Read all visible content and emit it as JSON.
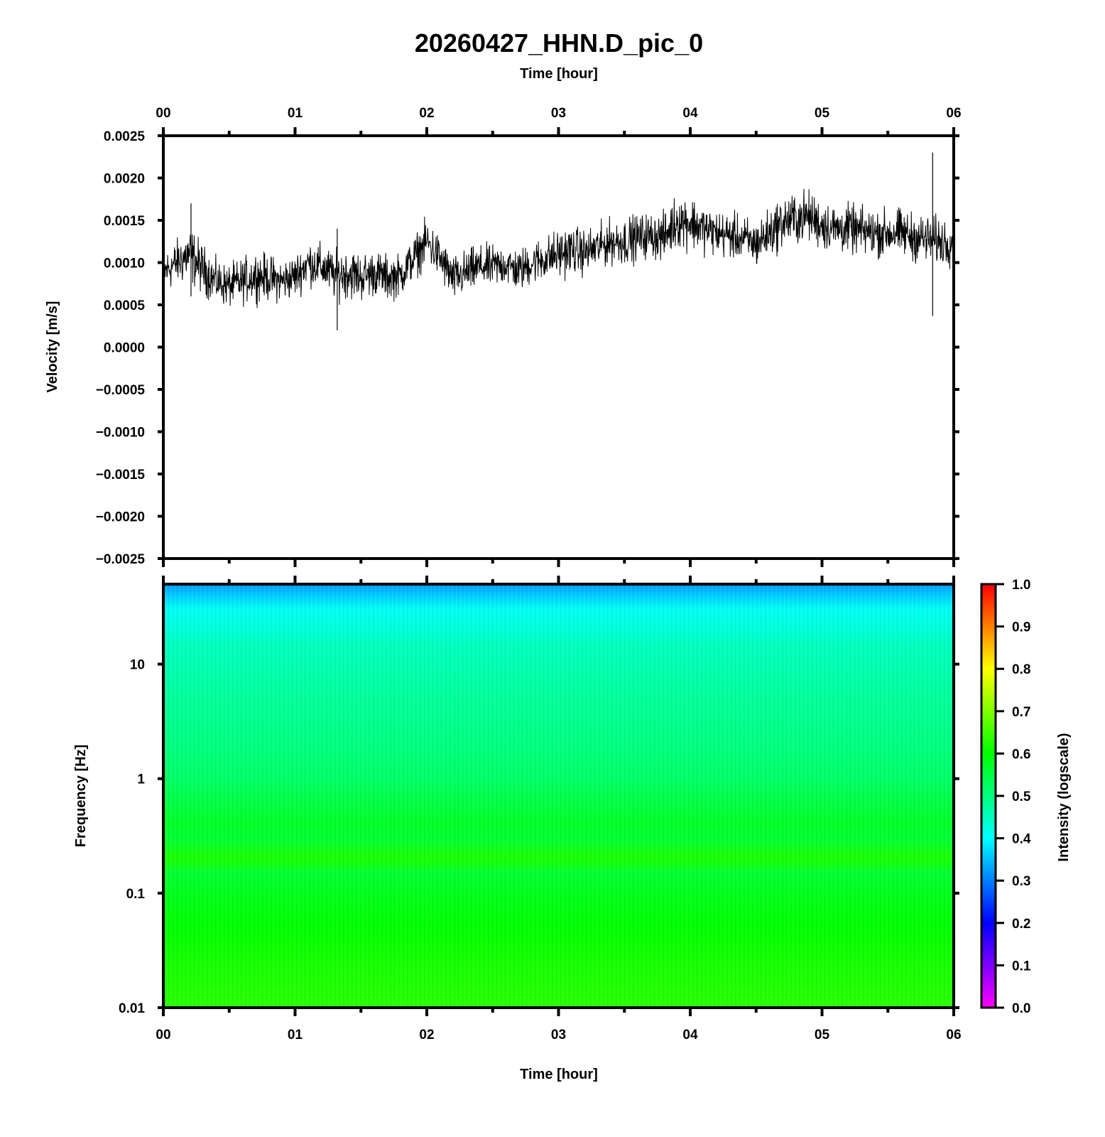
{
  "title": "20260427_HHN.D_pic_0",
  "top_xlabel": "Time [hour]",
  "bottom_xlabel": "Time [hour]",
  "time_ticks": [
    "00",
    "01",
    "02",
    "03",
    "04",
    "05",
    "06"
  ],
  "colors": {
    "trace": "#000000",
    "axes": "#000000"
  },
  "chart_data": [
    {
      "type": "line",
      "panel": "waveform",
      "ylabel": "Velocity [m/s]",
      "xlim": [
        0,
        6
      ],
      "ylim": [
        -0.0025,
        0.0025
      ],
      "yticks": [
        0.0025,
        0.002,
        0.0015,
        0.001,
        0.0005,
        0.0,
        -0.0005,
        -0.001,
        -0.0015,
        -0.002,
        -0.0025
      ],
      "ytick_labels": [
        "0.0025",
        "0.0020",
        "0.0015",
        "0.0010",
        "0.0005",
        "0.0000",
        "−0.0005",
        "−0.0010",
        "−0.0015",
        "−0.0020",
        "−0.0025"
      ],
      "grid": false,
      "envelope": {
        "x": [
          0.0,
          0.1,
          0.2,
          0.3,
          0.4,
          0.5,
          0.6,
          0.7,
          0.8,
          0.9,
          1.0,
          1.1,
          1.2,
          1.3,
          1.4,
          1.5,
          1.6,
          1.7,
          1.8,
          1.9,
          2.0,
          2.1,
          2.2,
          2.3,
          2.4,
          2.5,
          2.6,
          2.7,
          2.8,
          2.9,
          3.0,
          3.1,
          3.2,
          3.3,
          3.4,
          3.5,
          3.6,
          3.7,
          3.8,
          3.9,
          4.0,
          4.1,
          4.2,
          4.3,
          4.4,
          4.5,
          4.6,
          4.7,
          4.8,
          4.9,
          5.0,
          5.1,
          5.2,
          5.3,
          5.4,
          5.5,
          5.6,
          5.7,
          5.8,
          5.9,
          6.0
        ],
        "mean": [
          0.00088,
          0.001,
          0.0011,
          0.00092,
          0.00078,
          0.00072,
          0.00078,
          0.00085,
          0.00082,
          0.00078,
          0.00084,
          0.001,
          0.00095,
          0.00085,
          0.00088,
          0.00083,
          0.00088,
          0.00082,
          0.00085,
          0.00105,
          0.00125,
          0.00105,
          0.0008,
          0.00088,
          0.00095,
          0.00095,
          0.00098,
          0.0009,
          0.001,
          0.00105,
          0.0011,
          0.00115,
          0.00112,
          0.00118,
          0.00125,
          0.00125,
          0.0013,
          0.00132,
          0.0013,
          0.0015,
          0.00148,
          0.0014,
          0.00135,
          0.00132,
          0.00128,
          0.00122,
          0.00135,
          0.00148,
          0.00152,
          0.00155,
          0.00145,
          0.0014,
          0.0014,
          0.00137,
          0.00135,
          0.00135,
          0.00135,
          0.0013,
          0.00128,
          0.00125,
          0.00125
        ],
        "half_range": [
          0.0003,
          0.00032,
          0.0004,
          0.00035,
          0.0003,
          0.0003,
          0.00032,
          0.00034,
          0.00032,
          0.0003,
          0.0003,
          0.00032,
          0.00032,
          0.00034,
          0.00036,
          0.00034,
          0.00032,
          0.00032,
          0.0003,
          0.0003,
          0.00032,
          0.00032,
          0.00032,
          0.00032,
          0.0003,
          0.0003,
          0.0003,
          0.0003,
          0.0003,
          0.00032,
          0.00034,
          0.00034,
          0.00032,
          0.00032,
          0.00032,
          0.00034,
          0.00032,
          0.00032,
          0.00034,
          0.00038,
          0.00038,
          0.00034,
          0.00032,
          0.00032,
          0.00032,
          0.00034,
          0.00034,
          0.00036,
          0.00038,
          0.00036,
          0.00036,
          0.00034,
          0.00034,
          0.00034,
          0.00034,
          0.00034,
          0.00034,
          0.00034,
          0.00034,
          0.00034,
          0.00034
        ]
      },
      "spikes": [
        {
          "x": 0.21,
          "y": [
            0.0006,
            0.0017
          ]
        },
        {
          "x": 1.32,
          "y": [
            0.0002,
            0.0014
          ]
        },
        {
          "x": 5.84,
          "y": [
            0.00037,
            0.0023
          ]
        }
      ]
    },
    {
      "type": "heatmap",
      "panel": "spectrogram",
      "ylabel": "Frequency [Hz]",
      "xlim": [
        0,
        6
      ],
      "yscale": "log",
      "ylim": [
        0.01,
        50
      ],
      "yticks": [
        0.01,
        0.1,
        1,
        10
      ],
      "ytick_labels": [
        "0.01",
        "0.1",
        "1",
        "10"
      ],
      "frequency_profile": {
        "freq": [
          50,
          40,
          30,
          20,
          15,
          10,
          5,
          2,
          1,
          0.6,
          0.4,
          0.3,
          0.2,
          0.15,
          0.1,
          0.05,
          0.02,
          0.01
        ],
        "intensity": [
          0.32,
          0.36,
          0.41,
          0.43,
          0.45,
          0.46,
          0.48,
          0.5,
          0.52,
          0.55,
          0.57,
          0.56,
          0.62,
          0.56,
          0.58,
          0.6,
          0.62,
          0.63
        ]
      },
      "colorbar": {
        "label": "Intensity (logscale)",
        "range": [
          0.0,
          1.0
        ],
        "ticks": [
          "1.0",
          "0.9",
          "0.8",
          "0.7",
          "0.6",
          "0.5",
          "0.4",
          "0.3",
          "0.2",
          "0.1",
          "0.0"
        ],
        "colors": [
          "#ff00ff",
          "#0000ff",
          "#00ffff",
          "#00ff00",
          "#ffff00",
          "#ff0000"
        ]
      }
    }
  ]
}
